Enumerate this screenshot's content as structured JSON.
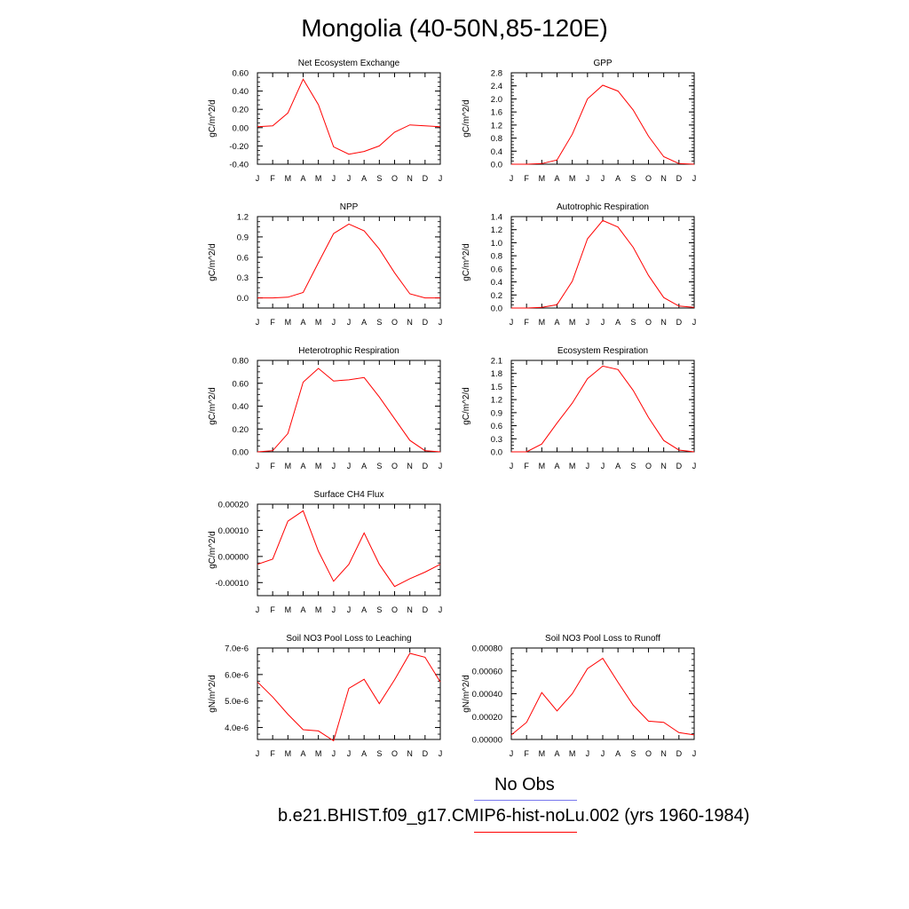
{
  "page": {
    "title": "Mongolia (40-50N,85-120E)"
  },
  "legend": {
    "obs_label": "No Obs",
    "obs_color": "#7777ee",
    "model_label": "b.e21.BHIST.f09_g17.CMIP6-hist-noLu.002 (yrs 1960-1984)",
    "model_color": "#ff0000"
  },
  "chart_data": [
    {
      "type": "line",
      "title": "Net Ecosystem Exchange",
      "ylabel": "gC/m^2/d",
      "categories": [
        "J",
        "F",
        "M",
        "A",
        "M",
        "J",
        "J",
        "A",
        "S",
        "O",
        "N",
        "D",
        "J"
      ],
      "ylim": [
        -0.4,
        0.6
      ],
      "yticks": [
        -0.4,
        -0.2,
        0.0,
        0.2,
        0.4,
        0.6
      ],
      "ytick_labels": [
        "-0.40",
        "-0.20",
        "0.00",
        "0.20",
        "0.40",
        "0.60"
      ],
      "series": [
        {
          "values": [
            0.01,
            0.02,
            0.16,
            0.53,
            0.25,
            -0.21,
            -0.29,
            -0.26,
            -0.2,
            -0.05,
            0.03,
            0.02,
            0.01
          ],
          "color": "#ff0000"
        }
      ]
    },
    {
      "type": "line",
      "title": "GPP",
      "ylabel": "gC/m^2/d",
      "categories": [
        "J",
        "F",
        "M",
        "A",
        "M",
        "J",
        "J",
        "A",
        "S",
        "O",
        "N",
        "D",
        "J"
      ],
      "ylim": [
        0,
        2.8
      ],
      "yticks": [
        0,
        0.4,
        0.8,
        1.2,
        1.6,
        2.0,
        2.4,
        2.8
      ],
      "ytick_labels": [
        "0.0",
        "0.4",
        "0.8",
        "1.2",
        "1.6",
        "2.0",
        "2.4",
        "2.8"
      ],
      "series": [
        {
          "values": [
            0.0,
            0.0,
            0.02,
            0.13,
            0.92,
            2.0,
            2.42,
            2.24,
            1.66,
            0.86,
            0.23,
            0.02,
            0.0
          ],
          "color": "#ff0000"
        }
      ]
    },
    {
      "type": "line",
      "title": "NPP",
      "ylabel": "gC/m^2/d",
      "categories": [
        "J",
        "F",
        "M",
        "A",
        "M",
        "J",
        "J",
        "A",
        "S",
        "O",
        "N",
        "D",
        "J"
      ],
      "ylim": [
        -0.15,
        1.2
      ],
      "yticks": [
        0,
        0.3,
        0.6,
        0.9,
        1.2
      ],
      "ytick_labels": [
        "0.0",
        "0.3",
        "0.6",
        "0.9",
        "1.2"
      ],
      "series": [
        {
          "values": [
            0.0,
            0.0,
            0.01,
            0.08,
            0.52,
            0.95,
            1.09,
            0.99,
            0.72,
            0.37,
            0.06,
            0.0,
            0.0
          ],
          "color": "#ff0000"
        }
      ]
    },
    {
      "type": "line",
      "title": "Autotrophic Respiration",
      "ylabel": "gC/m^2/d",
      "categories": [
        "J",
        "F",
        "M",
        "A",
        "M",
        "J",
        "J",
        "A",
        "S",
        "O",
        "N",
        "D",
        "J"
      ],
      "ylim": [
        0,
        1.4
      ],
      "yticks": [
        0,
        0.2,
        0.4,
        0.6,
        0.8,
        1.0,
        1.2,
        1.4
      ],
      "ytick_labels": [
        "0.0",
        "0.2",
        "0.4",
        "0.6",
        "0.8",
        "1.0",
        "1.2",
        "1.4"
      ],
      "series": [
        {
          "values": [
            0.0,
            0.0,
            0.01,
            0.05,
            0.41,
            1.06,
            1.34,
            1.24,
            0.93,
            0.5,
            0.16,
            0.03,
            0.01
          ],
          "color": "#ff0000"
        }
      ]
    },
    {
      "type": "line",
      "title": "Heterotrophic Respiration",
      "ylabel": "gC/m^2/d",
      "categories": [
        "J",
        "F",
        "M",
        "A",
        "M",
        "J",
        "J",
        "A",
        "S",
        "O",
        "N",
        "D",
        "J"
      ],
      "ylim": [
        0,
        0.8
      ],
      "yticks": [
        0,
        0.2,
        0.4,
        0.6,
        0.8
      ],
      "ytick_labels": [
        "0.00",
        "0.20",
        "0.40",
        "0.60",
        "0.80"
      ],
      "series": [
        {
          "values": [
            0.0,
            0.01,
            0.16,
            0.61,
            0.73,
            0.62,
            0.63,
            0.65,
            0.48,
            0.29,
            0.1,
            0.01,
            0.0
          ],
          "color": "#ff0000"
        }
      ]
    },
    {
      "type": "line",
      "title": "Ecosystem Respiration",
      "ylabel": "gC/m^2/d",
      "categories": [
        "J",
        "F",
        "M",
        "A",
        "M",
        "J",
        "J",
        "A",
        "S",
        "O",
        "N",
        "D",
        "J"
      ],
      "ylim": [
        0,
        2.1
      ],
      "yticks": [
        0,
        0.3,
        0.6,
        0.9,
        1.2,
        1.5,
        1.8,
        2.1
      ],
      "ytick_labels": [
        "0.0",
        "0.3",
        "0.6",
        "0.9",
        "1.2",
        "1.5",
        "1.8",
        "2.1"
      ],
      "series": [
        {
          "values": [
            0.0,
            0.0,
            0.18,
            0.66,
            1.12,
            1.68,
            1.97,
            1.89,
            1.41,
            0.79,
            0.26,
            0.04,
            0.0
          ],
          "color": "#ff0000"
        }
      ]
    },
    {
      "type": "line",
      "title": "Surface CH4 Flux",
      "ylabel": "gC/m^2/d",
      "categories": [
        "J",
        "F",
        "M",
        "A",
        "M",
        "J",
        "J",
        "A",
        "S",
        "O",
        "N",
        "D",
        "J"
      ],
      "ylim": [
        -0.00015,
        0.0002
      ],
      "yticks": [
        -0.0001,
        0,
        0.0001,
        0.0002
      ],
      "ytick_labels": [
        "-0.00010",
        "0.00000",
        "0.00010",
        "0.00020"
      ],
      "series": [
        {
          "values": [
            -3e-05,
            -1e-05,
            0.000135,
            0.000175,
            2e-05,
            -9.5e-05,
            -3e-05,
            9e-05,
            -3e-05,
            -0.000115,
            -8.5e-05,
            -6e-05,
            -3e-05
          ],
          "color": "#ff0000"
        }
      ]
    },
    {
      "type": "line",
      "title": "Soil NO3 Pool Loss to Leaching",
      "ylabel": "gN/m^2/d",
      "categories": [
        "J",
        "F",
        "M",
        "A",
        "M",
        "J",
        "J",
        "A",
        "S",
        "O",
        "N",
        "D",
        "J"
      ],
      "ylim": [
        3.55e-06,
        7e-06
      ],
      "yticks": [
        4e-06,
        5e-06,
        6e-06,
        7e-06
      ],
      "ytick_labels": [
        "4.0e-6",
        "5.0e-6",
        "6.0e-6",
        "7.0e-6"
      ],
      "series": [
        {
          "values": [
            5.72e-06,
            5.15e-06,
            4.5e-06,
            3.92e-06,
            3.87e-06,
            3.5e-06,
            5.48e-06,
            5.82e-06,
            4.9e-06,
            5.8e-06,
            6.8e-06,
            6.65e-06,
            5.72e-06
          ],
          "color": "#ff0000"
        }
      ]
    },
    {
      "type": "line",
      "title": "Soil NO3 Pool Loss to Runoff",
      "ylabel": "gN/m^2/d",
      "categories": [
        "J",
        "F",
        "M",
        "A",
        "M",
        "J",
        "J",
        "A",
        "S",
        "O",
        "N",
        "D",
        "J"
      ],
      "ylim": [
        0,
        0.0008
      ],
      "yticks": [
        0,
        0.0002,
        0.0004,
        0.0006,
        0.0008
      ],
      "ytick_labels": [
        "0.00000",
        "0.00020",
        "0.00040",
        "0.00060",
        "0.00080"
      ],
      "series": [
        {
          "values": [
            4e-05,
            0.00015,
            0.00041,
            0.00025,
            0.0004,
            0.00062,
            0.00071,
            0.0005,
            0.0003,
            0.00016,
            0.00015,
            6e-05,
            4e-05
          ],
          "color": "#ff0000"
        }
      ]
    }
  ]
}
